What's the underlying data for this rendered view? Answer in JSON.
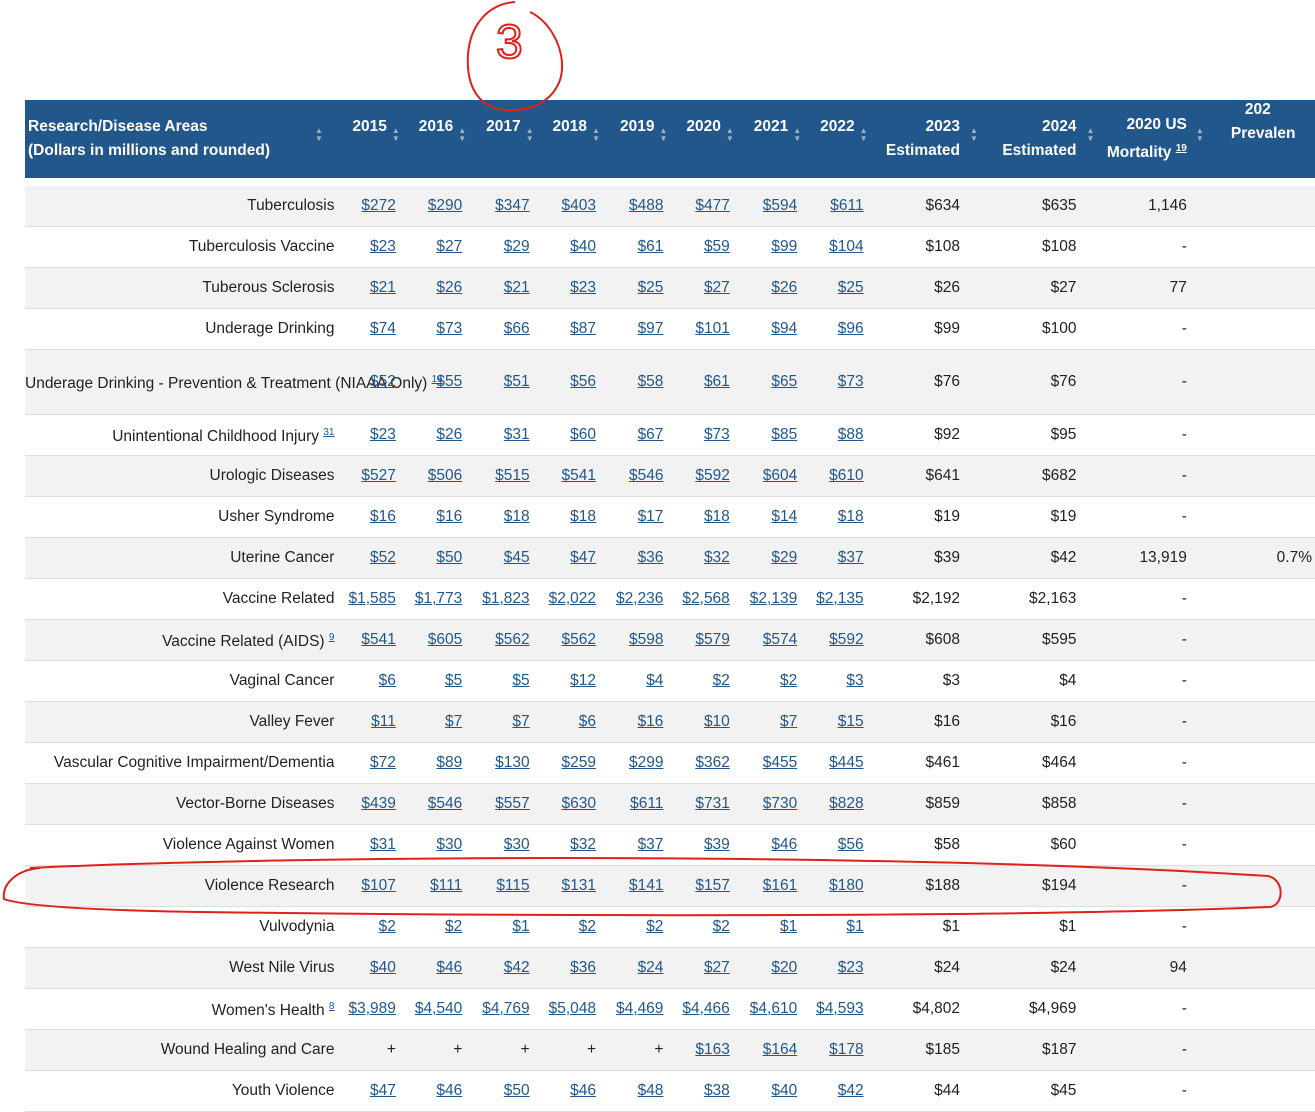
{
  "columns": [
    {
      "line1": "Research/Disease Areas",
      "line2": "(Dollars in millions and rounded)"
    },
    {
      "line1": "2015",
      "line2": ""
    },
    {
      "line1": "2016",
      "line2": ""
    },
    {
      "line1": "2017",
      "line2": ""
    },
    {
      "line1": "2018",
      "line2": ""
    },
    {
      "line1": "2019",
      "line2": ""
    },
    {
      "line1": "2020",
      "line2": ""
    },
    {
      "line1": "2021",
      "line2": ""
    },
    {
      "line1": "2022",
      "line2": ""
    },
    {
      "line1": "2023",
      "line2": "Estimated"
    },
    {
      "line1": "2024",
      "line2": "Estimated"
    },
    {
      "line1": "2020 US",
      "line2": "Mortality",
      "sup": "19"
    },
    {
      "line1": "202",
      "line2": "Prevalen"
    }
  ],
  "rows": [
    {
      "name": "Tuberculosis",
      "sup": "",
      "years": [
        "$272",
        "$290",
        "$347",
        "$403",
        "$488",
        "$477",
        "$594",
        "$611"
      ],
      "est2023": "$634",
      "est2024": "$635",
      "mortality": "1,146",
      "prevalence": ""
    },
    {
      "name": "Tuberculosis Vaccine",
      "sup": "",
      "years": [
        "$23",
        "$27",
        "$29",
        "$40",
        "$61",
        "$59",
        "$99",
        "$104"
      ],
      "est2023": "$108",
      "est2024": "$108",
      "mortality": "-",
      "prevalence": ""
    },
    {
      "name": "Tuberous Sclerosis",
      "sup": "",
      "years": [
        "$21",
        "$26",
        "$21",
        "$23",
        "$25",
        "$27",
        "$26",
        "$25"
      ],
      "est2023": "$26",
      "est2024": "$27",
      "mortality": "77",
      "prevalence": ""
    },
    {
      "name": "Underage Drinking",
      "sup": "",
      "years": [
        "$74",
        "$73",
        "$66",
        "$87",
        "$97",
        "$101",
        "$94",
        "$96"
      ],
      "est2023": "$99",
      "est2024": "$100",
      "mortality": "-",
      "prevalence": ""
    },
    {
      "name": "Underage Drinking - Prevention & Treatment (NIAAA Only)",
      "sup": "16",
      "years": [
        "$52",
        "$55",
        "$51",
        "$56",
        "$58",
        "$61",
        "$65",
        "$73"
      ],
      "est2023": "$76",
      "est2024": "$76",
      "mortality": "-",
      "prevalence": ""
    },
    {
      "name": "Unintentional Childhood Injury",
      "sup": "31",
      "years": [
        "$23",
        "$26",
        "$31",
        "$60",
        "$67",
        "$73",
        "$85",
        "$88"
      ],
      "est2023": "$92",
      "est2024": "$95",
      "mortality": "-",
      "prevalence": ""
    },
    {
      "name": "Urologic Diseases",
      "sup": "",
      "years": [
        "$527",
        "$506",
        "$515",
        "$541",
        "$546",
        "$592",
        "$604",
        "$610"
      ],
      "est2023": "$641",
      "est2024": "$682",
      "mortality": "-",
      "prevalence": ""
    },
    {
      "name": "Usher Syndrome",
      "sup": "",
      "years": [
        "$16",
        "$16",
        "$18",
        "$18",
        "$17",
        "$18",
        "$14",
        "$18"
      ],
      "est2023": "$19",
      "est2024": "$19",
      "mortality": "-",
      "prevalence": ""
    },
    {
      "name": "Uterine Cancer",
      "sup": "",
      "years": [
        "$52",
        "$50",
        "$45",
        "$47",
        "$36",
        "$32",
        "$29",
        "$37"
      ],
      "est2023": "$39",
      "est2024": "$42",
      "mortality": "13,919",
      "prevalence": "0.7%"
    },
    {
      "name": "Vaccine Related",
      "sup": "",
      "years": [
        "$1,585",
        "$1,773",
        "$1,823",
        "$2,022",
        "$2,236",
        "$2,568",
        "$2,139",
        "$2,135"
      ],
      "est2023": "$2,192",
      "est2024": "$2,163",
      "mortality": "-",
      "prevalence": ""
    },
    {
      "name": "Vaccine Related (AIDS)",
      "sup": "9",
      "years": [
        "$541",
        "$605",
        "$562",
        "$562",
        "$598",
        "$579",
        "$574",
        "$592"
      ],
      "est2023": "$608",
      "est2024": "$595",
      "mortality": "-",
      "prevalence": ""
    },
    {
      "name": "Vaginal Cancer",
      "sup": "",
      "years": [
        "$6",
        "$5",
        "$5",
        "$12",
        "$4",
        "$2",
        "$2",
        "$3"
      ],
      "est2023": "$3",
      "est2024": "$4",
      "mortality": "-",
      "prevalence": ""
    },
    {
      "name": "Valley Fever",
      "sup": "",
      "years": [
        "$11",
        "$7",
        "$7",
        "$6",
        "$16",
        "$10",
        "$7",
        "$15"
      ],
      "est2023": "$16",
      "est2024": "$16",
      "mortality": "-",
      "prevalence": ""
    },
    {
      "name": "Vascular Cognitive Impairment/Dementia",
      "sup": "",
      "years": [
        "$72",
        "$89",
        "$130",
        "$259",
        "$299",
        "$362",
        "$455",
        "$445"
      ],
      "est2023": "$461",
      "est2024": "$464",
      "mortality": "-",
      "prevalence": ""
    },
    {
      "name": "Vector-Borne Diseases",
      "sup": "",
      "years": [
        "$439",
        "$546",
        "$557",
        "$630",
        "$611",
        "$731",
        "$730",
        "$828"
      ],
      "est2023": "$859",
      "est2024": "$858",
      "mortality": "-",
      "prevalence": ""
    },
    {
      "name": "Violence Against Women",
      "sup": "",
      "years": [
        "$31",
        "$30",
        "$30",
        "$32",
        "$37",
        "$39",
        "$46",
        "$56"
      ],
      "est2023": "$58",
      "est2024": "$60",
      "mortality": "-",
      "prevalence": ""
    },
    {
      "name": "Violence Research",
      "sup": "",
      "years": [
        "$107",
        "$111",
        "$115",
        "$131",
        "$141",
        "$157",
        "$161",
        "$180"
      ],
      "est2023": "$188",
      "est2024": "$194",
      "mortality": "-",
      "prevalence": ""
    },
    {
      "name": "Vulvodynia",
      "sup": "",
      "years": [
        "$2",
        "$2",
        "$1",
        "$2",
        "$2",
        "$2",
        "$1",
        "$1"
      ],
      "est2023": "$1",
      "est2024": "$1",
      "mortality": "-",
      "prevalence": ""
    },
    {
      "name": "West Nile Virus",
      "sup": "",
      "years": [
        "$40",
        "$46",
        "$42",
        "$36",
        "$24",
        "$27",
        "$20",
        "$23"
      ],
      "est2023": "$24",
      "est2024": "$24",
      "mortality": "94",
      "prevalence": ""
    },
    {
      "name": "Women's Health",
      "sup": "8",
      "years": [
        "$3,989",
        "$4,540",
        "$4,769",
        "$5,048",
        "$4,469",
        "$4,466",
        "$4,610",
        "$4,593"
      ],
      "est2023": "$4,802",
      "est2024": "$4,969",
      "mortality": "-",
      "prevalence": ""
    },
    {
      "name": "Wound Healing and Care",
      "sup": "",
      "years": [
        "+",
        "+",
        "+",
        "+",
        "+",
        "$163",
        "$164",
        "$178"
      ],
      "est2023": "$185",
      "est2024": "$187",
      "mortality": "-",
      "prevalence": ""
    },
    {
      "name": "Youth Violence",
      "sup": "",
      "years": [
        "$47",
        "$46",
        "$50",
        "$46",
        "$48",
        "$38",
        "$40",
        "$42"
      ],
      "est2023": "$44",
      "est2024": "$45",
      "mortality": "-",
      "prevalence": ""
    }
  ],
  "annotation": {
    "label": "3",
    "color": "#e0201b",
    "highlighted_row": "Violence Research"
  }
}
